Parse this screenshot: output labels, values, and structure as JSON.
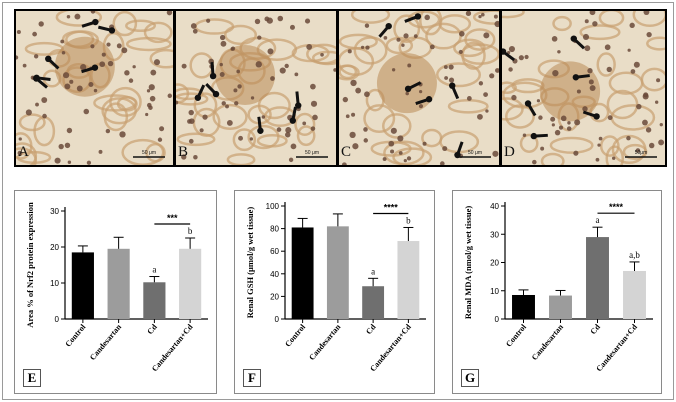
{
  "micrographs": [
    {
      "label": "A",
      "scale": "50 μm"
    },
    {
      "label": "B",
      "scale": "50 μm"
    },
    {
      "label": "C",
      "scale": "50 μm"
    },
    {
      "label": "D",
      "scale": "50μm"
    }
  ],
  "chart_data": [
    {
      "panel": "E",
      "type": "bar",
      "ylabel": "Area % of Nrf2 protein expression",
      "ylim": [
        0,
        30
      ],
      "yticks": [
        0,
        10,
        20,
        30
      ],
      "categories": [
        "Control",
        "Candesartan",
        "Cd",
        "Candesartan+Cd"
      ],
      "values": [
        18.5,
        19.5,
        10.2,
        19.5
      ],
      "errors": [
        1.8,
        3.2,
        1.6,
        3.0
      ],
      "colors": [
        "#000000",
        "#9c9c9c",
        "#6f6f6f",
        "#d4d4d4"
      ],
      "annotations": [
        "",
        "",
        "a",
        "b"
      ],
      "significance": {
        "label": "***",
        "from": 2,
        "to": 3
      }
    },
    {
      "panel": "F",
      "type": "bar",
      "ylabel": "Renal GSH (μmol/g wet tissue)",
      "ylim": [
        0,
        100
      ],
      "yticks": [
        0,
        20,
        40,
        60,
        80,
        100
      ],
      "categories": [
        "Control",
        "Candesartan",
        "Cd",
        "Candesartan+Cd"
      ],
      "values": [
        81,
        82,
        29,
        69
      ],
      "errors": [
        8,
        11,
        7,
        12
      ],
      "colors": [
        "#000000",
        "#9c9c9c",
        "#6f6f6f",
        "#d4d4d4"
      ],
      "annotations": [
        "",
        "",
        "a",
        "b"
      ],
      "significance": {
        "label": "****",
        "from": 2,
        "to": 3
      }
    },
    {
      "panel": "G",
      "type": "bar",
      "ylabel": "Renal MDA (nmol/g wet tissue)",
      "ylim": [
        0,
        40
      ],
      "yticks": [
        0,
        10,
        20,
        30,
        40
      ],
      "categories": [
        "Control",
        "Candesartan",
        "Cd",
        "Candesartan+Cd"
      ],
      "values": [
        8.5,
        8.3,
        29,
        17
      ],
      "errors": [
        1.8,
        1.8,
        3.5,
        3.2
      ],
      "colors": [
        "#000000",
        "#9c9c9c",
        "#6f6f6f",
        "#d4d4d4"
      ],
      "annotations": [
        "",
        "",
        "a",
        "a,b"
      ],
      "significance": {
        "label": "****",
        "from": 2,
        "to": 3
      }
    }
  ]
}
